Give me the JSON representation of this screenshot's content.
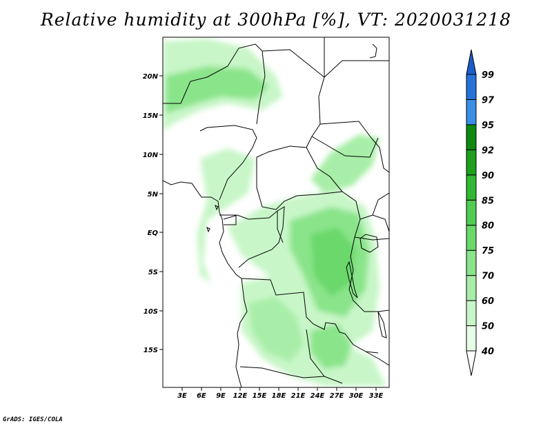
{
  "title": "Relative humidity at 300hPa [%], VT: 2020031218",
  "credit": "GrADS: IGES/COLA",
  "map": {
    "lat_labels": [
      "20N",
      "15N",
      "10N",
      "5N",
      "EQ",
      "5S",
      "10S",
      "15S"
    ],
    "lon_labels": [
      "3E",
      "6E",
      "9E",
      "12E",
      "15E",
      "18E",
      "21E",
      "24E",
      "27E",
      "30E",
      "33E"
    ]
  },
  "colorbar": {
    "levels": [
      "40",
      "50",
      "60",
      "70",
      "75",
      "80",
      "85",
      "90",
      "92",
      "95",
      "97",
      "99"
    ],
    "colors": [
      "#ffffff",
      "#e6fce6",
      "#c8f6c8",
      "#a8eea8",
      "#8ae48a",
      "#6ad86a",
      "#50cc50",
      "#32b832",
      "#1ea01e",
      "#0f8a0f",
      "#3a8ee6",
      "#2573d8",
      "#1a5cc8"
    ]
  }
}
